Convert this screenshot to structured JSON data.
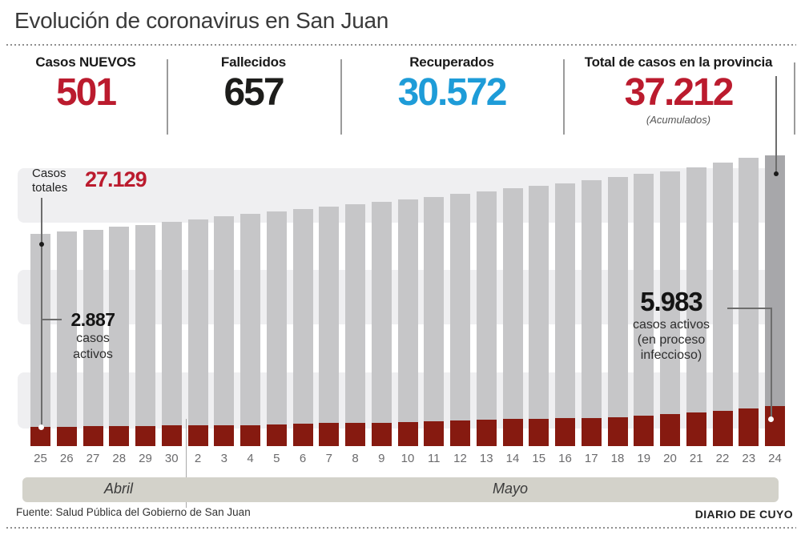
{
  "title": "Evolución de coronavirus en San Juan",
  "stats": [
    {
      "label": "Casos NUEVOS",
      "value": "501",
      "color": "#bb1b2e"
    },
    {
      "label": "Fallecidos",
      "value": "657",
      "color": "#1d1d1b"
    },
    {
      "label": "Recuperados",
      "value": "30.572",
      "color": "#1e9cd8"
    },
    {
      "label": "Total de casos en la provincia",
      "value": "37.212",
      "note": "(Acumulados)",
      "color": "#bb1b2e"
    }
  ],
  "annotations": {
    "totales_label": "Casos totales",
    "totales_value": "27.129",
    "active_first_value": "2.887",
    "active_first_line1": "casos",
    "active_first_line2": "activos",
    "active_last_value": "5.983",
    "active_last_line1": "casos activos",
    "active_last_line2": "(en proceso",
    "active_last_line3": "infeccioso)"
  },
  "footer": {
    "source": "Fuente: Salud Pública del Gobierno de San Juan",
    "brand": "DIARIO DE CUYO"
  },
  "chart_data": {
    "type": "bar",
    "title": "Evolución de coronavirus en San Juan",
    "categories": [
      "25",
      "26",
      "27",
      "28",
      "29",
      "30",
      "2",
      "3",
      "4",
      "5",
      "6",
      "7",
      "8",
      "9",
      "10",
      "11",
      "12",
      "13",
      "14",
      "15",
      "16",
      "17",
      "18",
      "19",
      "20",
      "21",
      "22",
      "23",
      "24"
    ],
    "month_groups": [
      {
        "label": "Abril",
        "count": 6
      },
      {
        "label": "Mayo",
        "count": 23
      }
    ],
    "series": [
      {
        "name": "Casos totales (acumulados)",
        "color": "#c6c6c8",
        "values": [
          27129,
          27400,
          27650,
          28000,
          28300,
          28700,
          29000,
          29400,
          29700,
          30000,
          30350,
          30650,
          30950,
          31250,
          31550,
          31850,
          32200,
          32600,
          33000,
          33300,
          33600,
          34000,
          34400,
          34800,
          35100,
          35600,
          36250,
          36850,
          37212
        ]
      },
      {
        "name": "Casos activos (en proceso infeccioso)",
        "color": "#861a10",
        "values": [
          2887,
          2900,
          2950,
          3000,
          3000,
          3100,
          3100,
          3100,
          3100,
          3250,
          3400,
          3500,
          3500,
          3500,
          3600,
          3750,
          3900,
          4000,
          4100,
          4100,
          4200,
          4250,
          4350,
          4600,
          4850,
          5100,
          5350,
          5600,
          5983
        ]
      }
    ],
    "last_bar_highlight_color": "#a7a7aa",
    "ylim": [
      0,
      38000
    ],
    "grid": "horizontal striped background, no axis lines",
    "legend_position": "inline callouts",
    "annotated_points": {
      "first_total": 27129,
      "last_total": 37212,
      "first_active": 2887,
      "last_active": 5983
    }
  }
}
